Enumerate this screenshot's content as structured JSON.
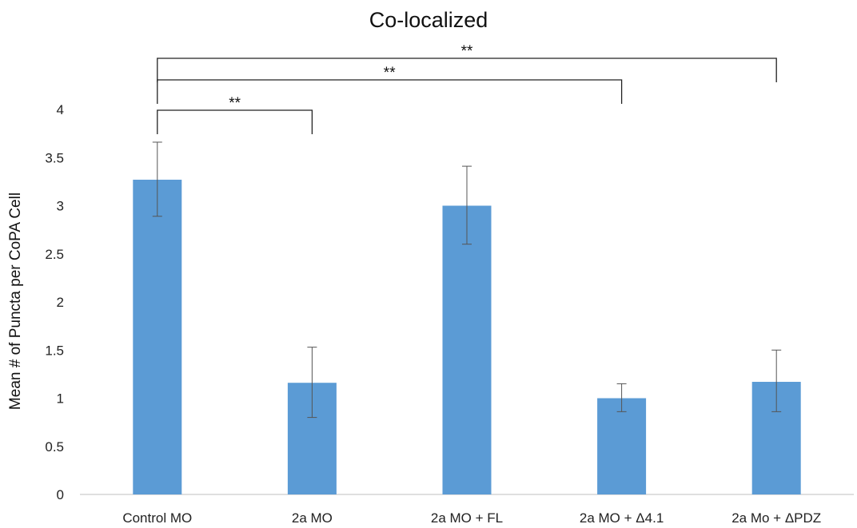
{
  "chart_data": {
    "type": "bar",
    "title": "Co-localized",
    "xlabel": "",
    "ylabel": "Mean # of Puncta per CoPA Cell",
    "ylim": [
      0,
      4
    ],
    "yticks": [
      "0",
      "0.5",
      "1",
      "1.5",
      "2",
      "2.5",
      "3",
      "3.5",
      "4"
    ],
    "grid": false,
    "legend": "none",
    "bar_color": "#5b9bd5",
    "categories": [
      "Control MO",
      "2a MO",
      "2a MO + FL",
      "2a MO + Δ4.1",
      "2a Mo + ΔPDZ"
    ],
    "values": [
      3.27,
      1.16,
      3.0,
      1.0,
      1.17
    ],
    "error_low": [
      2.89,
      0.8,
      2.6,
      0.86,
      0.86
    ],
    "error_high": [
      3.66,
      1.53,
      3.41,
      1.15,
      1.5
    ],
    "significance": [
      {
        "from": 0,
        "to": 1,
        "label": "**"
      },
      {
        "from": 0,
        "to": 3,
        "label": "**"
      },
      {
        "from": 0,
        "to": 4,
        "label": "**"
      }
    ]
  }
}
